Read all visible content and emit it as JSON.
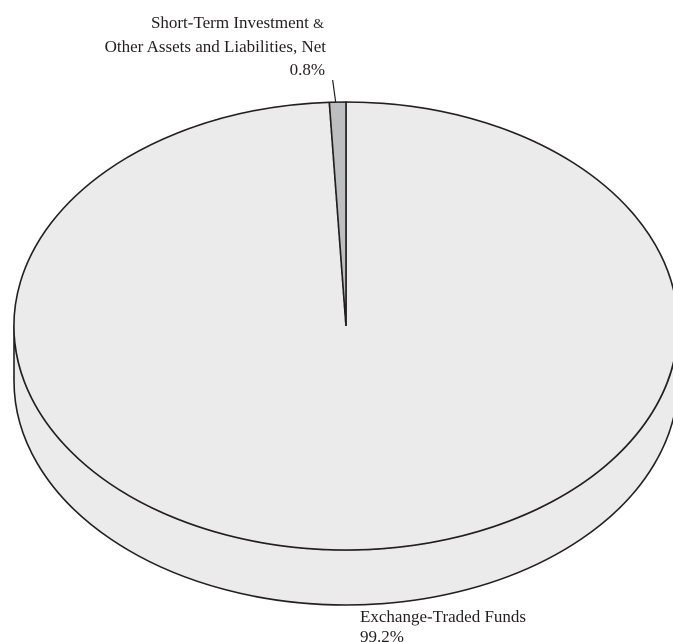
{
  "chart_data": {
    "type": "pie",
    "style": "3d",
    "slices": [
      {
        "label_line1": "Short-Term Investment",
        "label_amp": "&",
        "label_line2": "Other Assets and Liabilities, Net",
        "value": 0.8,
        "value_label": "0.8%",
        "color": "#bcbec0"
      },
      {
        "label": "Exchange-Traded Funds",
        "value": 99.2,
        "value_label": "99.2%",
        "color": "#ebebec"
      }
    ],
    "outline_color": "#231f20"
  }
}
